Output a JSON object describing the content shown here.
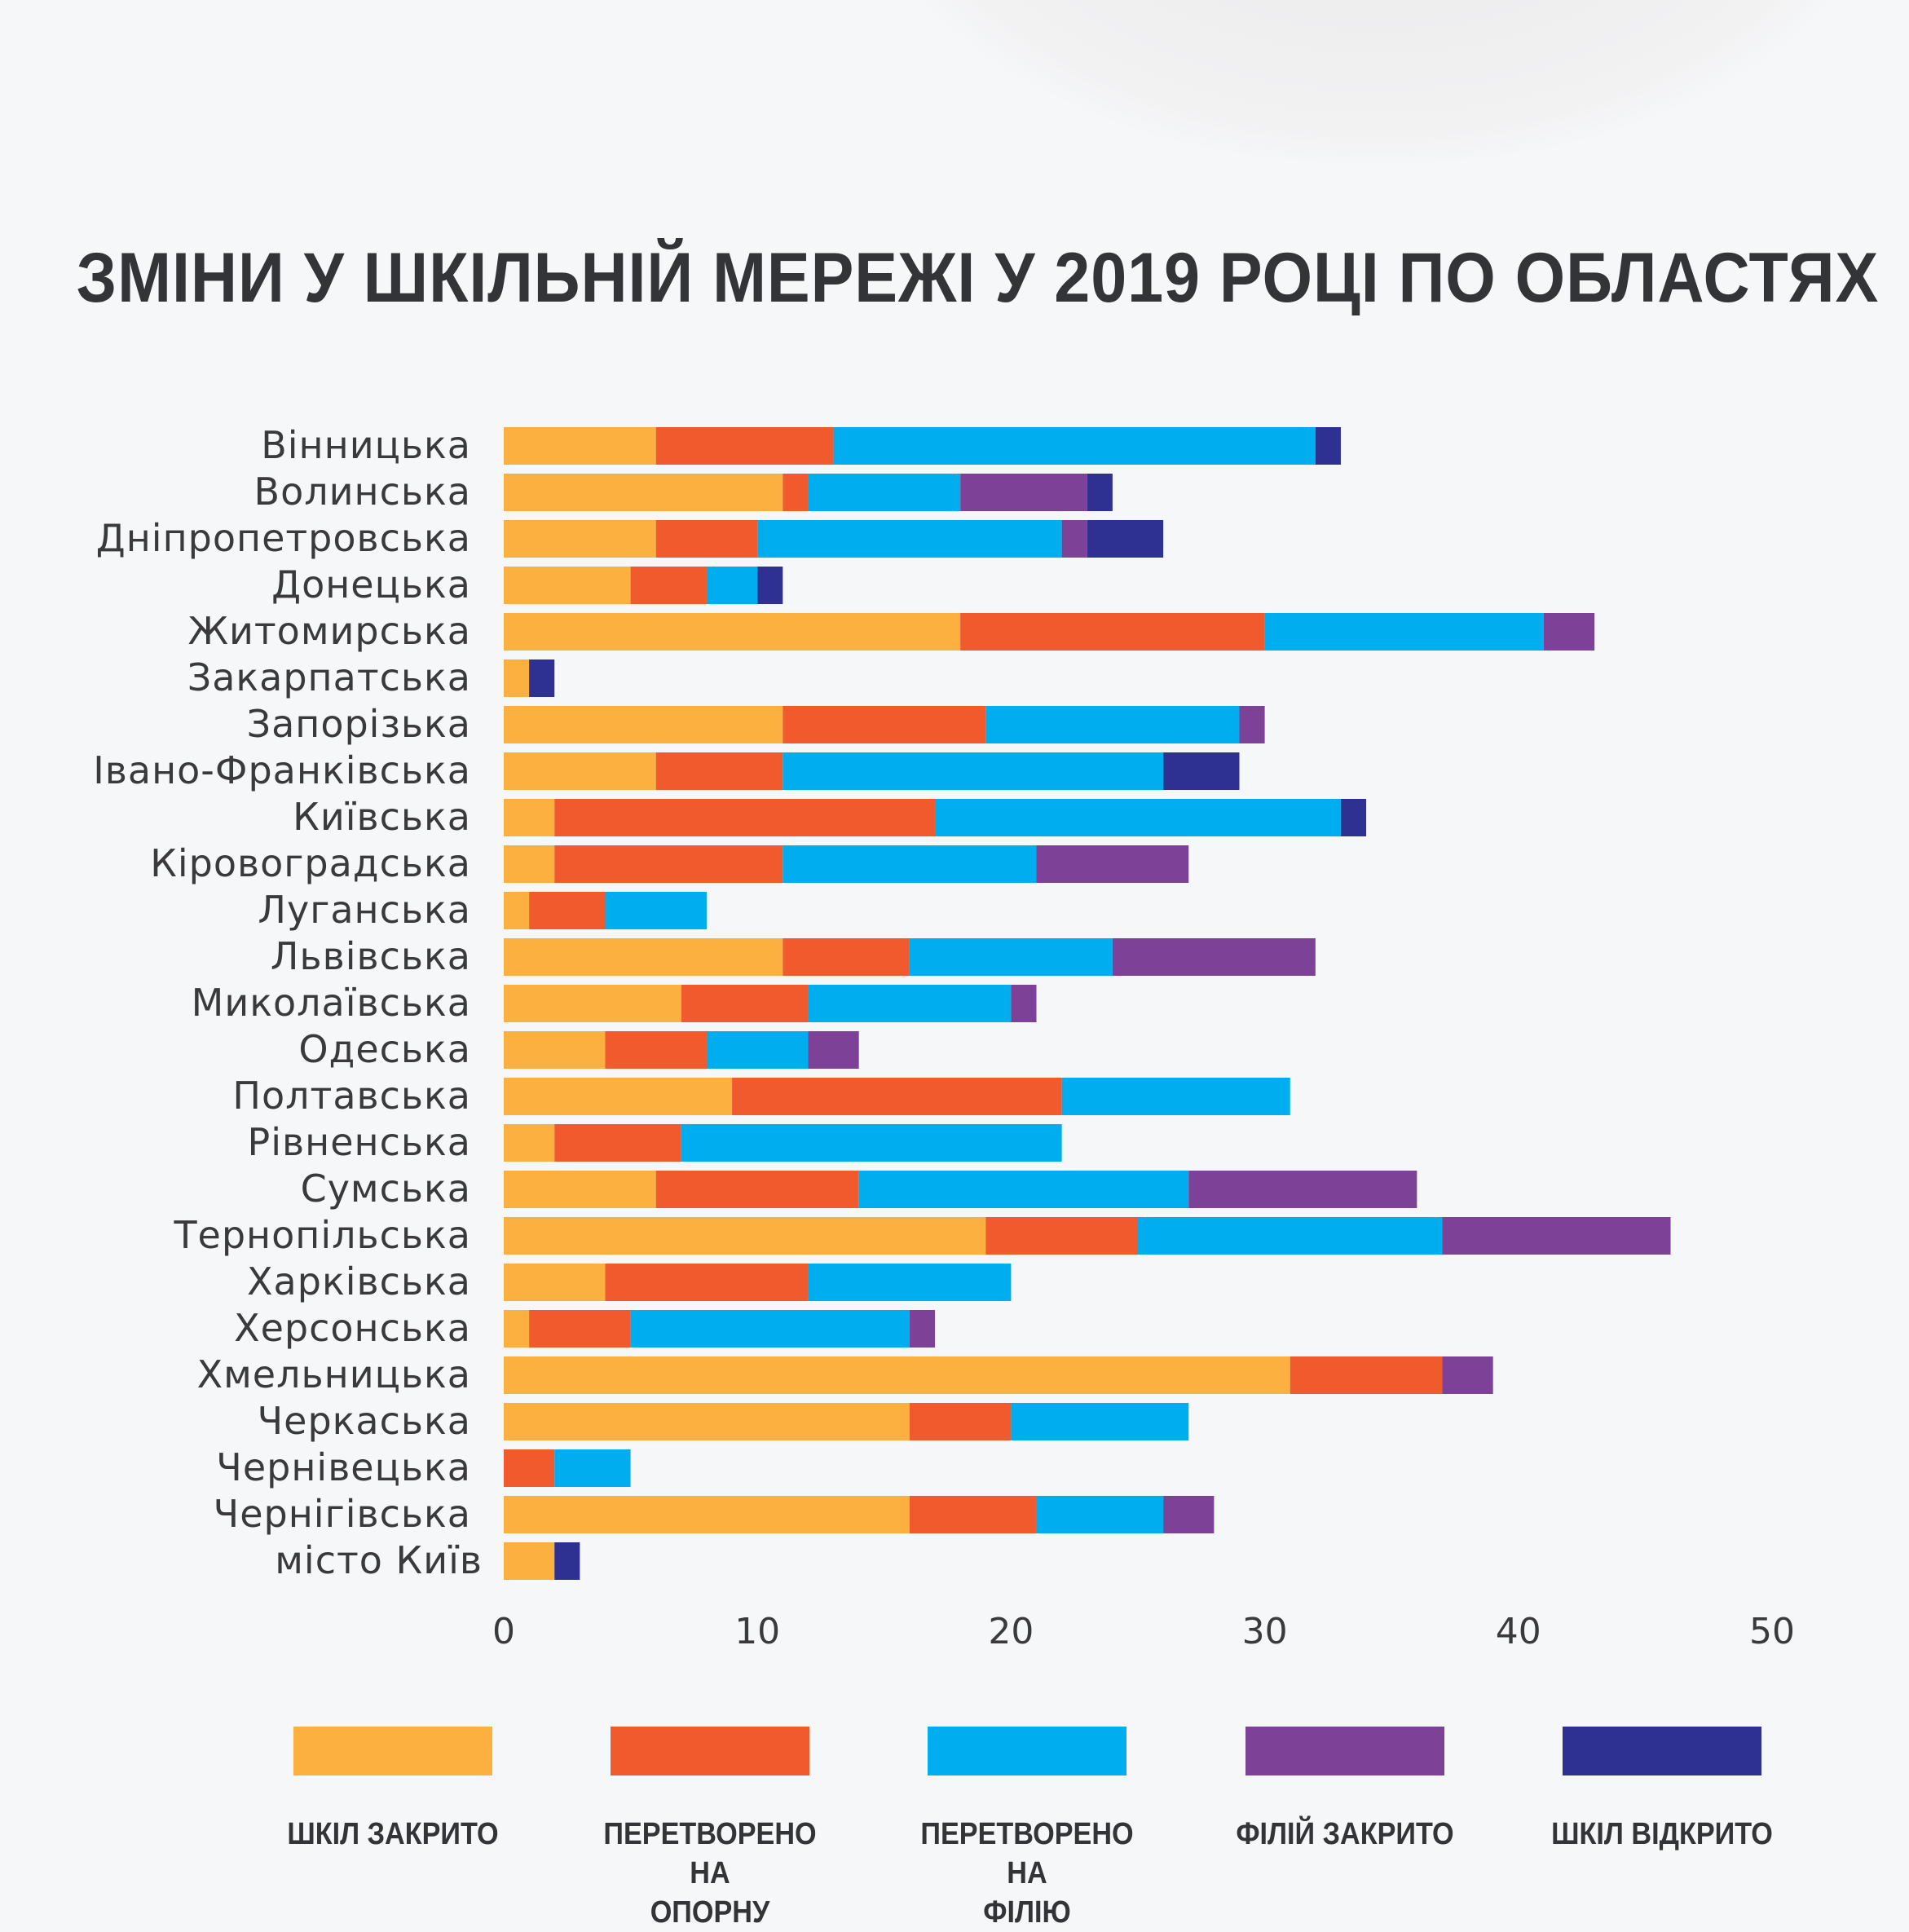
{
  "title": "ЗМІНИ У ШКІЛЬНІЙ МЕРЕЖІ У 2019 РОЦІ ПО ОБЛАСТЯХ",
  "chart_data": {
    "type": "bar",
    "orientation": "horizontal",
    "stacked": true,
    "title": "ЗМІНИ У ШКІЛЬНІЙ МЕРЕЖІ У 2019 РОЦІ ПО ОБЛАСТЯХ",
    "xlabel": "",
    "ylabel": "",
    "xlim": [
      0,
      50
    ],
    "xticks": [
      "0",
      "10",
      "20",
      "30",
      "40",
      "50"
    ],
    "grid": false,
    "legend_position": "bottom",
    "categories": [
      "Вінницька",
      "Волинська",
      "Дніпропетровська",
      "Донецька",
      "Житомирська",
      "Закарпатська",
      "Запорізька",
      "Івано-Франківська",
      "Київська",
      "Кіровоградська",
      "Луганська",
      "Львівська",
      "Миколаївська",
      "Одеська",
      "Полтавська",
      "Рівненська",
      "Сумська",
      "Тернопільська",
      "Харківська",
      "Херсонська",
      "Хмельницька",
      "Черкаська",
      "Чернівецька",
      "Чернігівська",
      "місто Київ"
    ],
    "series": [
      {
        "name": "ШКІЛ ЗАКРИТО",
        "label_lines": [
          "ШКІЛ ЗАКРИТО"
        ],
        "color": "#fbb040",
        "values": [
          6,
          11,
          6,
          5,
          18,
          1,
          11,
          6,
          2,
          2,
          1,
          11,
          7,
          4,
          9,
          2,
          6,
          19,
          4,
          1,
          31,
          16,
          0,
          16,
          2
        ]
      },
      {
        "name": "ПЕРЕТВОРЕНО НА ОПОРНУ",
        "label_lines": [
          "ПЕРЕТВОРЕНО НА",
          "ОПОРНУ"
        ],
        "color": "#f15a2c",
        "values": [
          7,
          1,
          4,
          3,
          12,
          0,
          8,
          5,
          15,
          9,
          3,
          5,
          5,
          4,
          13,
          5,
          8,
          6,
          8,
          4,
          6,
          4,
          2,
          5,
          0
        ]
      },
      {
        "name": "ПЕРЕТВОРЕНО НА ФІЛІЮ",
        "label_lines": [
          "ПЕРЕТВОРЕНО НА",
          "ФІЛІЮ"
        ],
        "color": "#00aeef",
        "values": [
          19,
          6,
          12,
          2,
          11,
          0,
          10,
          15,
          16,
          10,
          4,
          8,
          8,
          4,
          9,
          15,
          13,
          12,
          8,
          11,
          0,
          7,
          3,
          5,
          0
        ]
      },
      {
        "name": "ФІЛІЙ ЗАКРИТО",
        "label_lines": [
          "ФІЛІЙ ЗАКРИТО"
        ],
        "color": "#7d4197",
        "values": [
          0,
          5,
          1,
          0,
          2,
          0,
          1,
          0,
          0,
          6,
          0,
          8,
          1,
          2,
          0,
          0,
          9,
          9,
          0,
          1,
          2,
          0,
          0,
          2,
          0
        ]
      },
      {
        "name": "ШКІЛ ВІДКРИТО",
        "label_lines": [
          "ШКІЛ ВІДКРИТО"
        ],
        "color": "#2e3192",
        "values": [
          1,
          1,
          3,
          1,
          0,
          1,
          0,
          3,
          1,
          0,
          0,
          0,
          0,
          0,
          0,
          0,
          0,
          0,
          0,
          0,
          0,
          0,
          0,
          0,
          1
        ]
      }
    ]
  }
}
